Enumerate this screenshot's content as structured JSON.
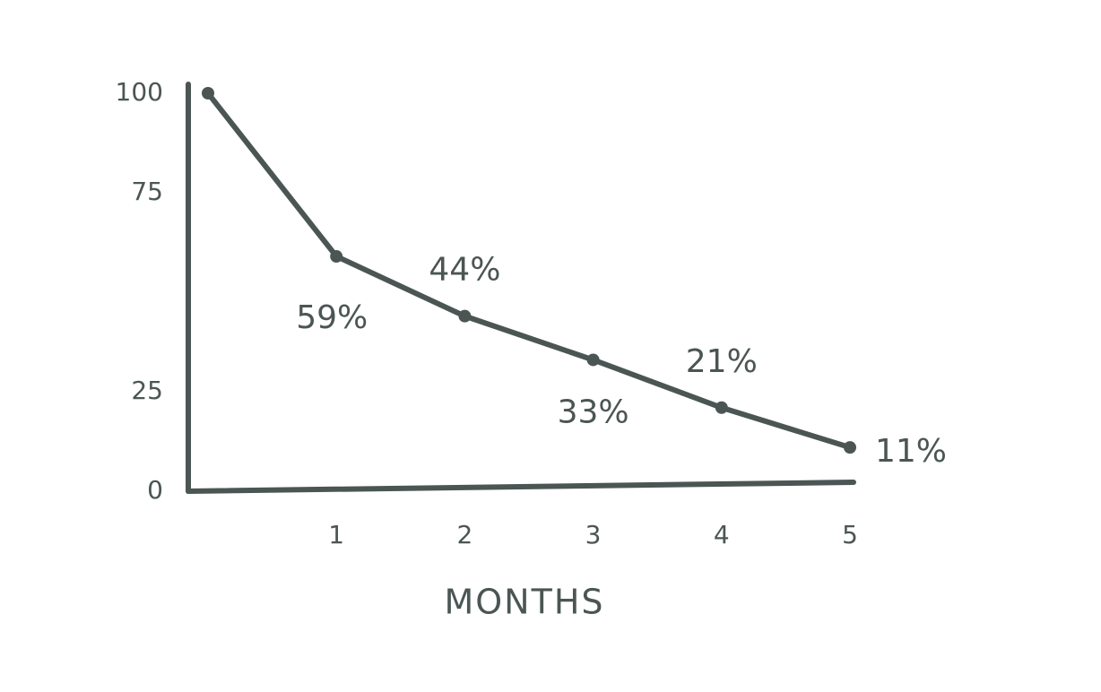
{
  "chart_data": {
    "type": "line",
    "x_label": "MONTHS",
    "x": [
      0,
      1,
      2,
      3,
      4,
      5
    ],
    "values": [
      100,
      59,
      44,
      33,
      21,
      11
    ],
    "value_labels": [
      null,
      "59%",
      "44%",
      "33%",
      "21%",
      "11%"
    ],
    "color": "#4b5654",
    "xlim": [
      0,
      5
    ],
    "xticks": [
      1,
      2,
      3,
      4,
      5
    ],
    "ylim": [
      0,
      100
    ],
    "yticks": [
      0,
      25,
      75,
      100
    ],
    "grid": false
  }
}
